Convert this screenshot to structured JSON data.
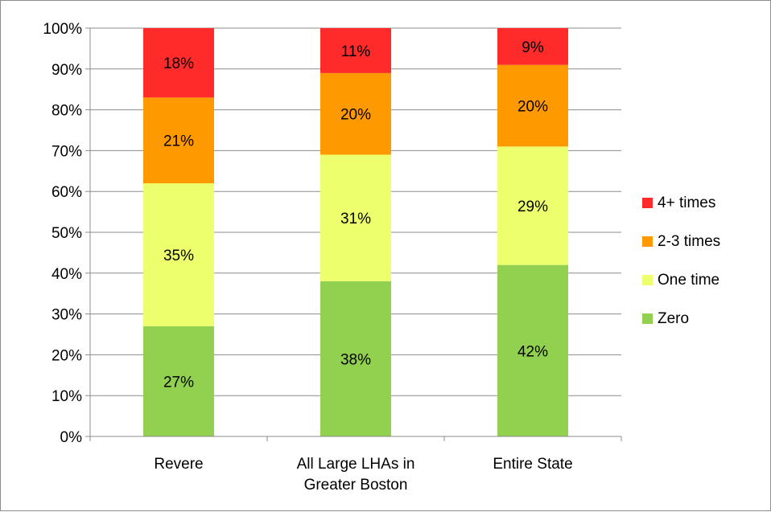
{
  "chart_data": {
    "type": "bar",
    "stacked": true,
    "categories": [
      [
        "Revere"
      ],
      [
        "All Large LHAs in",
        "Greater Boston"
      ],
      [
        "Entire State"
      ]
    ],
    "series": [
      {
        "name": "Zero",
        "color": "#92d050",
        "values": [
          27,
          38,
          42
        ],
        "labels": [
          "27%",
          "38%",
          "42%"
        ]
      },
      {
        "name": "One time",
        "color": "#eeff6e",
        "values": [
          35,
          31,
          29
        ],
        "labels": [
          "35%",
          "31%",
          "29%"
        ]
      },
      {
        "name": "2-3 times",
        "color": "#ff9900",
        "values": [
          21,
          20,
          20
        ],
        "labels": [
          "21%",
          "20%",
          "20%"
        ]
      },
      {
        "name": "4+ times",
        "color": "#ff2a2a",
        "values": [
          18,
          11,
          9
        ],
        "labels": [
          "18%",
          "11%",
          "9%"
        ]
      }
    ],
    "y_ticks": [
      "0%",
      "10%",
      "20%",
      "30%",
      "40%",
      "50%",
      "60%",
      "70%",
      "80%",
      "90%",
      "100%"
    ],
    "ylim": [
      0,
      100
    ],
    "grid": true,
    "legend": {
      "placement": "right",
      "order": [
        "4+ times",
        "2-3 times",
        "One time",
        "Zero"
      ]
    },
    "gridline_color": "#8c8c8c"
  }
}
